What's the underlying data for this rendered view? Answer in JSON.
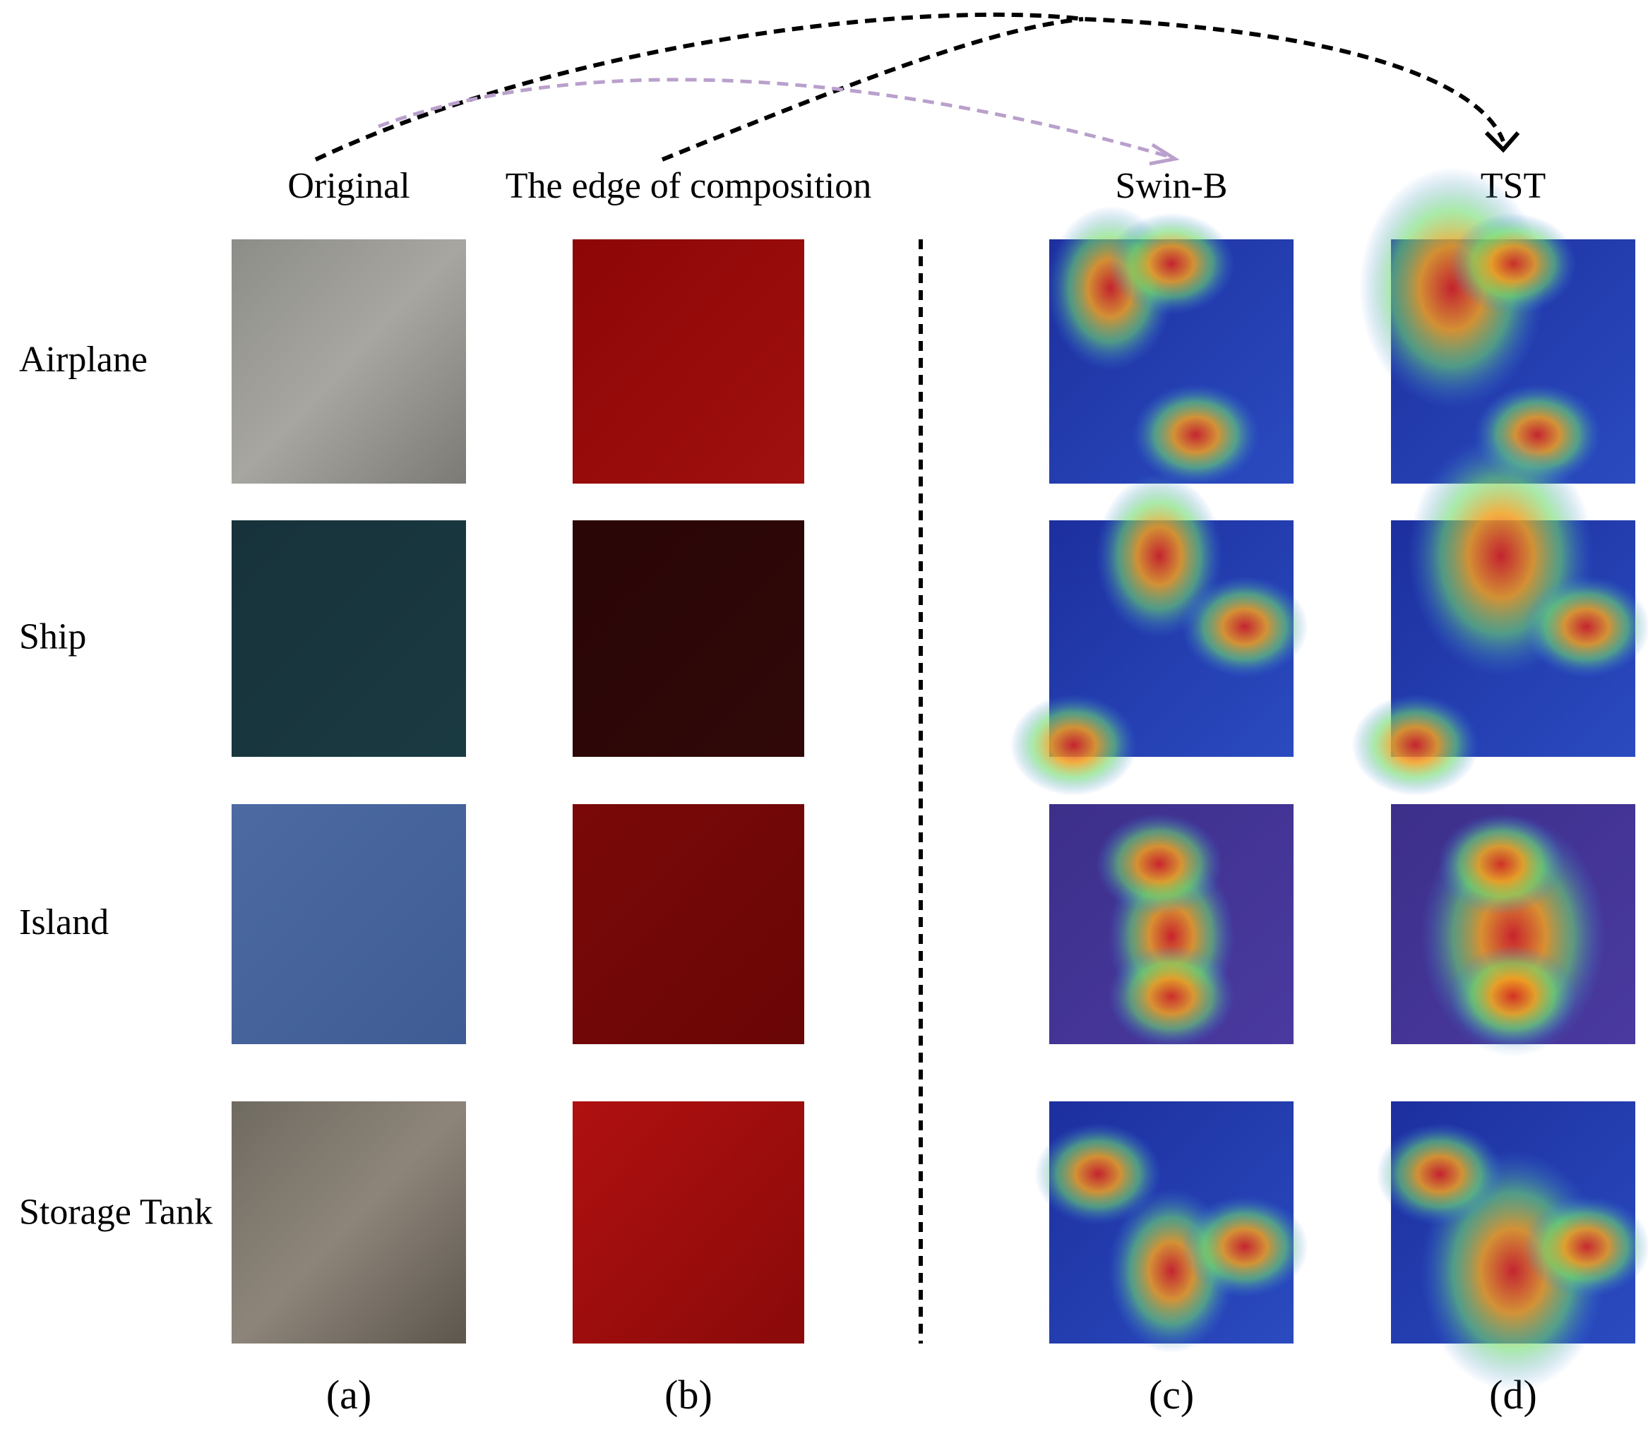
{
  "columns": [
    {
      "header": "Original",
      "label": "(a)"
    },
    {
      "header": "The edge of composition",
      "label": "(b)"
    },
    {
      "header": "Swin-B",
      "label": "(c)"
    },
    {
      "header": "TST",
      "label": "(d)"
    }
  ],
  "rows": [
    "Airplane",
    "Ship",
    "Island",
    "Storage Tank"
  ]
}
